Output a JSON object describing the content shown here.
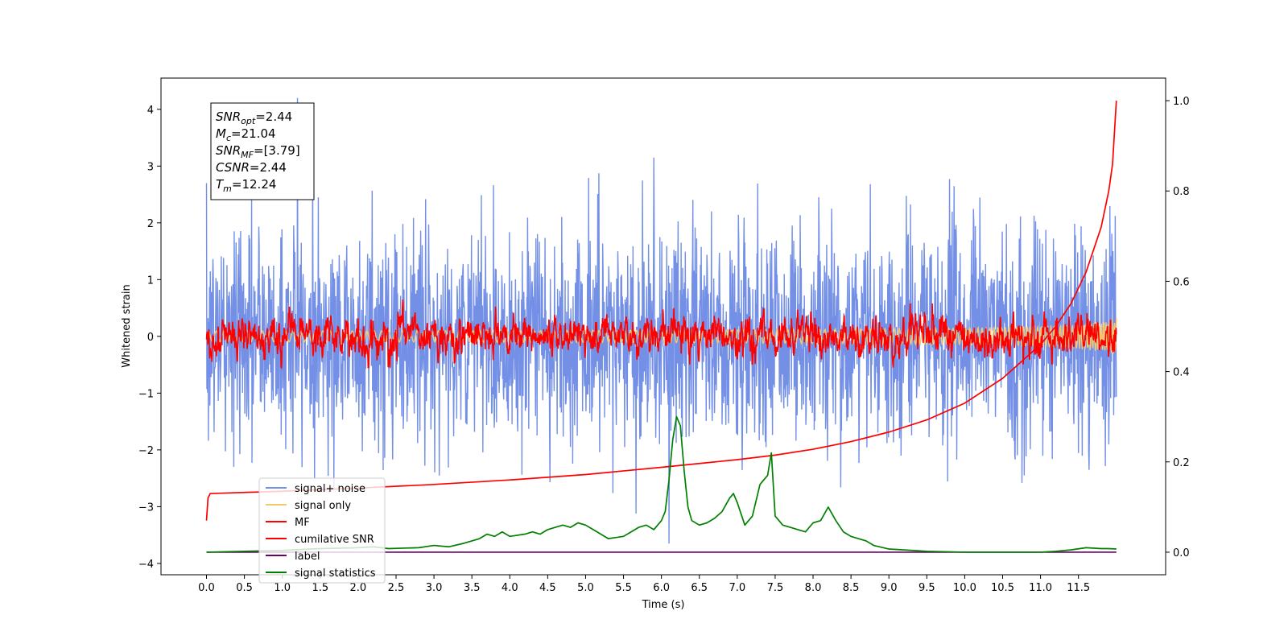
{
  "chart_data": {
    "type": "line",
    "title": "",
    "xlabel": "Time (s)",
    "ylabel_left": "Whitened strain",
    "ylabel_right": "",
    "xlim": [
      -0.6,
      12.65
    ],
    "ylim_left": [
      -4.2,
      4.55
    ],
    "ylim_right": [
      -0.05,
      1.05
    ],
    "x_ticks": [
      0.0,
      0.5,
      1.0,
      1.5,
      2.0,
      2.5,
      3.0,
      3.5,
      4.0,
      4.5,
      5.0,
      5.5,
      6.0,
      6.5,
      7.0,
      7.5,
      8.0,
      8.5,
      9.0,
      9.5,
      10.0,
      10.5,
      11.0,
      11.5
    ],
    "x_tick_labels": [
      "0.0",
      "0.5",
      "1.0",
      "1.5",
      "2.0",
      "2.5",
      "3.0",
      "3.5",
      "4.0",
      "4.5",
      "5.0",
      "5.5",
      "6.0",
      "6.5",
      "7.0",
      "7.5",
      "8.0",
      "8.5",
      "9.0",
      "9.5",
      "10.0",
      "10.5",
      "11.0",
      "11.5"
    ],
    "y_ticks_left": [
      4,
      3,
      2,
      1,
      0,
      -1,
      -2,
      -3,
      -4
    ],
    "y_tick_labels_left": [
      "4",
      "3",
      "2",
      "1",
      "0",
      "−1",
      "−2",
      "−3",
      "−4"
    ],
    "y_ticks_right": [
      1.0,
      0.8,
      0.6,
      0.4,
      0.2,
      0.0
    ],
    "y_tick_labels_right": [
      "1.0",
      "0.8",
      "0.6",
      "0.4",
      "0.2",
      "0.0"
    ],
    "grid": false,
    "legend_position": "lower-left",
    "annotation": {
      "lines": [
        {
          "base": "SNR",
          "sub": "opt",
          "value": "=2.44"
        },
        {
          "base": "M",
          "sub": "c",
          "value": "=21.04"
        },
        {
          "base": "SNR",
          "sub": "MF",
          "value": "=[3.79]"
        },
        {
          "base": "CSNR",
          "sub": "",
          "value": "=2.44"
        },
        {
          "base": "T",
          "sub": "m",
          "value": "=12.24"
        }
      ]
    },
    "series": [
      {
        "name": "signal+ noise",
        "axis": "left",
        "color": "#7390e6",
        "style": "noise",
        "x_range": [
          0.0,
          12.0
        ],
        "approx_amplitude": 2.4,
        "approx_peaks": [
          {
            "x": 0.0,
            "y": 2.7
          },
          {
            "x": 1.2,
            "y": 4.2
          },
          {
            "x": 5.9,
            "y": 3.15
          },
          {
            "x": 6.1,
            "y": -3.65
          }
        ]
      },
      {
        "name": "signal only",
        "axis": "left",
        "color": "#f5c86e",
        "style": "chirp",
        "x_range": [
          0.0,
          12.0
        ],
        "approx_amplitude": 0.2
      },
      {
        "name": "MF",
        "axis": "left",
        "color": "#ff0000",
        "style": "filtered",
        "x_range": [
          0.0,
          12.0
        ],
        "approx_amplitude": 0.6
      },
      {
        "name": "cumilative SNR",
        "axis": "right",
        "color": "#ff0000",
        "x": [
          0.0,
          0.02,
          0.05,
          1.0,
          2.0,
          3.0,
          4.0,
          5.0,
          6.0,
          7.0,
          7.5,
          8.0,
          8.5,
          9.0,
          9.5,
          10.0,
          10.5,
          11.0,
          11.2,
          11.4,
          11.6,
          11.8,
          11.9,
          11.95,
          12.0
        ],
        "y": [
          0.07,
          0.12,
          0.13,
          0.135,
          0.142,
          0.15,
          0.16,
          0.172,
          0.188,
          0.205,
          0.215,
          0.228,
          0.245,
          0.266,
          0.293,
          0.33,
          0.385,
          0.46,
          0.5,
          0.55,
          0.62,
          0.72,
          0.8,
          0.86,
          1.0
        ]
      },
      {
        "name": "label",
        "axis": "right",
        "color": "#6a006a",
        "x": [
          0.0,
          12.0
        ],
        "y": [
          0.0,
          0.0
        ]
      },
      {
        "name": "signal statistics",
        "axis": "right",
        "color": "#008000",
        "x": [
          0.0,
          0.5,
          1.0,
          1.5,
          2.0,
          2.2,
          2.4,
          2.8,
          3.0,
          3.2,
          3.4,
          3.5,
          3.6,
          3.7,
          3.8,
          3.9,
          4.0,
          4.2,
          4.3,
          4.4,
          4.5,
          4.6,
          4.7,
          4.8,
          4.9,
          5.0,
          5.1,
          5.2,
          5.3,
          5.5,
          5.6,
          5.7,
          5.8,
          5.9,
          6.0,
          6.05,
          6.1,
          6.15,
          6.2,
          6.25,
          6.3,
          6.35,
          6.4,
          6.5,
          6.6,
          6.7,
          6.8,
          6.9,
          6.95,
          7.0,
          7.1,
          7.2,
          7.3,
          7.35,
          7.4,
          7.45,
          7.5,
          7.55,
          7.6,
          7.7,
          7.8,
          7.9,
          8.0,
          8.1,
          8.2,
          8.3,
          8.4,
          8.5,
          8.6,
          8.7,
          8.8,
          9.0,
          9.5,
          10.0,
          10.5,
          11.0,
          11.2,
          11.4,
          11.6,
          11.8,
          11.9,
          12.0
        ],
        "y": [
          0.0,
          0.002,
          0.004,
          0.008,
          0.01,
          0.012,
          0.008,
          0.01,
          0.015,
          0.012,
          0.02,
          0.025,
          0.03,
          0.04,
          0.035,
          0.045,
          0.035,
          0.04,
          0.045,
          0.04,
          0.05,
          0.055,
          0.06,
          0.055,
          0.065,
          0.06,
          0.05,
          0.04,
          0.03,
          0.035,
          0.045,
          0.055,
          0.06,
          0.05,
          0.07,
          0.09,
          0.16,
          0.25,
          0.3,
          0.28,
          0.18,
          0.1,
          0.07,
          0.06,
          0.065,
          0.075,
          0.09,
          0.12,
          0.13,
          0.11,
          0.06,
          0.08,
          0.15,
          0.16,
          0.17,
          0.22,
          0.08,
          0.07,
          0.06,
          0.055,
          0.05,
          0.045,
          0.065,
          0.07,
          0.1,
          0.07,
          0.045,
          0.035,
          0.03,
          0.025,
          0.015,
          0.007,
          0.002,
          0.0,
          0.0,
          0.0,
          0.002,
          0.005,
          0.01,
          0.008,
          0.008,
          0.007
        ]
      }
    ]
  }
}
